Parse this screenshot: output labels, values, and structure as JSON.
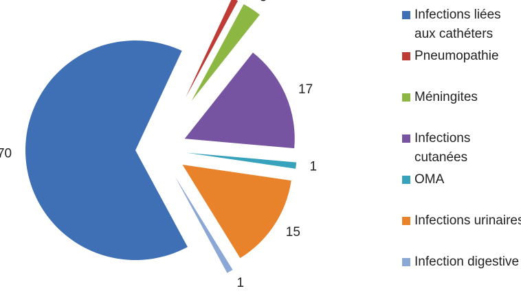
{
  "chart_data": {
    "type": "pie",
    "categories": [
      "Pneumopathie",
      "Méningites",
      "Infections cutanées",
      "OMA",
      "Infections urinaires",
      "Infection digestive",
      "Infections liées aux cathéters"
    ],
    "values": [
      1,
      3,
      17,
      1,
      15,
      1,
      70
    ],
    "colors": [
      "#be3b36",
      "#8db743",
      "#7654a2",
      "#37a2bb",
      "#e9832b",
      "#8aa7d5",
      "#3f70b5"
    ],
    "legend_order": [
      6,
      0,
      1,
      2,
      3,
      4,
      5
    ]
  }
}
